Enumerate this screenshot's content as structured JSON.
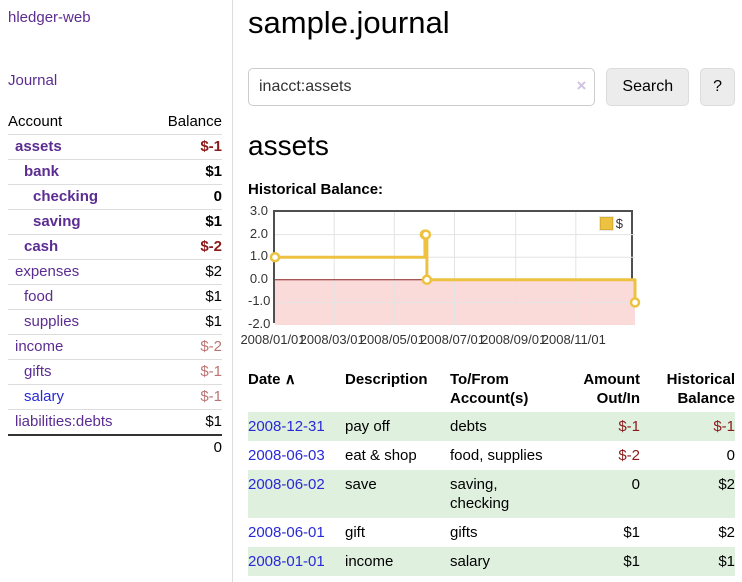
{
  "app": {
    "brand": "hledger-web",
    "nav": {
      "journal": "Journal"
    }
  },
  "sidebar": {
    "columns": {
      "account": "Account",
      "balance": "Balance"
    },
    "accounts": [
      {
        "name": "assets",
        "balance": "$-1",
        "level": 1,
        "bold": true,
        "name_color": "purple",
        "balance_class": "neg-strong"
      },
      {
        "name": "bank",
        "balance": "$1",
        "level": 2,
        "bold": true,
        "name_color": "purple",
        "balance_class": "normal"
      },
      {
        "name": "checking",
        "balance": "0",
        "level": 3,
        "bold": true,
        "name_color": "purple",
        "balance_class": "normal"
      },
      {
        "name": "saving",
        "balance": "$1",
        "level": 3,
        "bold": true,
        "name_color": "purple",
        "balance_class": "normal"
      },
      {
        "name": "cash",
        "balance": "$-2",
        "level": 2,
        "bold": true,
        "name_color": "purple",
        "balance_class": "neg-strong"
      },
      {
        "name": "expenses",
        "balance": "$2",
        "level": 1,
        "bold": false,
        "name_color": "purple",
        "balance_class": "normal"
      },
      {
        "name": "food",
        "balance": "$1",
        "level": 2,
        "bold": false,
        "name_color": "purple",
        "balance_class": "normal"
      },
      {
        "name": "supplies",
        "balance": "$1",
        "level": 2,
        "bold": false,
        "name_color": "purple",
        "balance_class": "normal"
      },
      {
        "name": "income",
        "balance": "$-2",
        "level": 1,
        "bold": false,
        "name_color": "purple",
        "balance_class": "neg-faded"
      },
      {
        "name": "gifts",
        "balance": "$-1",
        "level": 2,
        "bold": false,
        "name_color": "purple",
        "balance_class": "neg-faded"
      },
      {
        "name": "salary",
        "balance": "$-1",
        "level": 2,
        "bold": false,
        "name_color": "blue",
        "balance_class": "neg-faded"
      },
      {
        "name": "liabilities:debts",
        "balance": "$1",
        "level": 1,
        "bold": false,
        "name_color": "purple",
        "balance_class": "normal"
      }
    ],
    "total": "0"
  },
  "main": {
    "title": "sample.journal",
    "search": {
      "value": "inacct:assets",
      "clear_icon": "×",
      "search_button": "Search",
      "help_button": "?"
    },
    "account_heading": "assets",
    "section_label": "Historical Balance:"
  },
  "chart_data": {
    "type": "line",
    "step": true,
    "title": "Historical Balance",
    "series": [
      {
        "name": "$",
        "color": "#edc240",
        "points": [
          [
            "2008-01-01",
            1
          ],
          [
            "2008-06-01",
            2
          ],
          [
            "2008-06-02",
            2
          ],
          [
            "2008-06-03",
            0
          ],
          [
            "2008-12-31",
            -1
          ]
        ]
      }
    ],
    "ylim": [
      -2,
      3
    ],
    "yticks": [
      3.0,
      2.0,
      1.0,
      0.0,
      -1.0,
      -2.0
    ],
    "xticks": [
      "2008/01/01",
      "2008/03/01",
      "2008/05/01",
      "2008/07/01",
      "2008/09/01",
      "2008/11/01"
    ],
    "x_range": [
      "2008-01-01",
      "2008-12-31"
    ],
    "legend": {
      "label": "$",
      "position": "top-right"
    },
    "grid": true,
    "negative_region_color": "#fbdada",
    "zero_line_color": "#8b1d1d",
    "grid_color": "#e3e3e3",
    "border_color": "#4f4f4f"
  },
  "register_table": {
    "headers": {
      "date": "Date",
      "date_sort_icon": "∧",
      "description": "Description",
      "accounts": "To/From Account(s)",
      "amount": "Amount Out/In",
      "balance": "Historical Balance"
    },
    "rows": [
      {
        "date": "2008-12-31",
        "description": "pay off",
        "accounts": "debts",
        "amount": "$-1",
        "amount_neg": true,
        "balance": "$-1",
        "balance_neg": true
      },
      {
        "date": "2008-06-03",
        "description": "eat & shop",
        "accounts": "food, supplies",
        "amount": "$-2",
        "amount_neg": true,
        "balance": "0",
        "balance_neg": false
      },
      {
        "date": "2008-06-02",
        "description": "save",
        "accounts": "saving, checking",
        "amount": "0",
        "amount_neg": false,
        "balance": "$2",
        "balance_neg": false
      },
      {
        "date": "2008-06-01",
        "description": "gift",
        "accounts": "gifts",
        "amount": "$1",
        "amount_neg": false,
        "balance": "$2",
        "balance_neg": false
      },
      {
        "date": "2008-01-01",
        "description": "income",
        "accounts": "salary",
        "amount": "$1",
        "amount_neg": false,
        "balance": "$1",
        "balance_neg": false
      }
    ]
  },
  "colors": {
    "accent_purple": "#5c2d91",
    "link_blue": "#2929d6",
    "neg_strong": "#8b1a1a",
    "neg_faded": "#bb7474",
    "stripe_green": "#dff0df",
    "series_yellow": "#edc240"
  }
}
